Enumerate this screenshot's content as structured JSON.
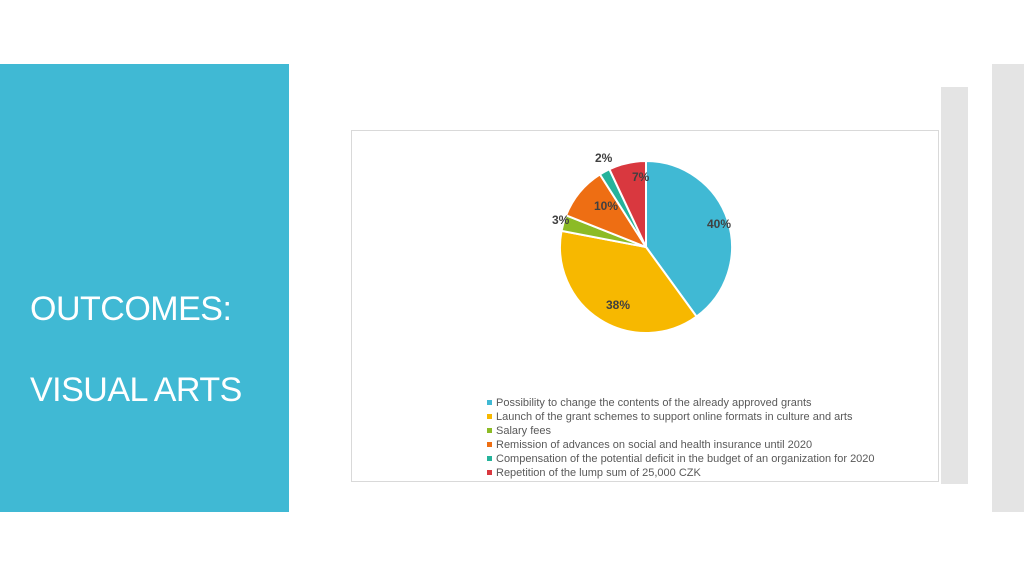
{
  "slide": {
    "title_line1": "OUTCOMES:",
    "title_line2": "VISUAL ARTS"
  },
  "colors": {
    "accent_panel": "#40b9d4"
  },
  "chart_data": {
    "type": "pie",
    "title": "",
    "legend_position": "bottom",
    "slices": [
      {
        "label": "Possibility to change the contents of the already approved grants",
        "value": 40,
        "display": "40%",
        "color": "#40b9d4"
      },
      {
        "label": "Launch of the grant schemes to support online formats in culture and arts",
        "value": 38,
        "display": "38%",
        "color": "#f7b800"
      },
      {
        "label": "Salary fees",
        "value": 3,
        "display": "3%",
        "color": "#8cbb26"
      },
      {
        "label": "Remission of advances on social and health insurance until 2020",
        "value": 10,
        "display": "10%",
        "color": "#ee6e13"
      },
      {
        "label": "Compensation of the potential deficit in the budget of an organization for 2020",
        "value": 2,
        "display": "2%",
        "color": "#25b39b"
      },
      {
        "label": "Repetition of the lump sum of 25,000 CZK",
        "value": 7,
        "display": "7%",
        "color": "#d9383f"
      }
    ]
  }
}
